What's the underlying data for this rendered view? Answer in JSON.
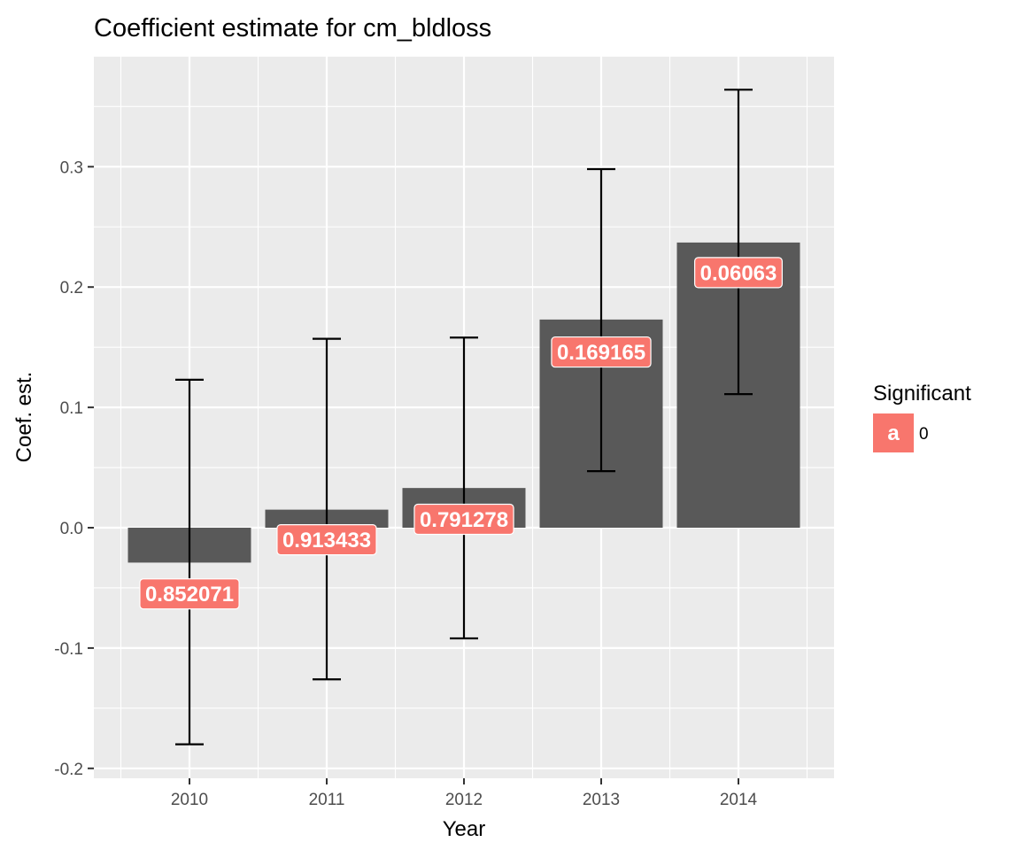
{
  "chart_data": {
    "type": "bar",
    "title": "Coefficient estimate for cm_bldloss",
    "xlabel": "Year",
    "ylabel": "Coef. est.",
    "categories": [
      "2010",
      "2011",
      "2012",
      "2013",
      "2014"
    ],
    "values": [
      -0.029,
      0.015,
      0.033,
      0.173,
      0.237
    ],
    "error_lower": [
      -0.18,
      -0.126,
      -0.092,
      0.047,
      0.111
    ],
    "error_upper": [
      0.123,
      0.157,
      0.158,
      0.298,
      0.364
    ],
    "labels": [
      "0.852071",
      "0.913433",
      "0.791278",
      "0.169165",
      "0.06063"
    ],
    "label_positions": [
      -0.055,
      -0.01,
      0.007,
      0.146,
      0.212
    ],
    "ylim": [
      -0.2,
      0.38
    ],
    "yticks": [
      -0.2,
      -0.1,
      0.0,
      0.1,
      0.2,
      0.3
    ],
    "ytick_labels": [
      "-0.2",
      "-0.1",
      "0.0",
      "0.1",
      "0.2",
      "0.3"
    ],
    "grid": true,
    "legend": {
      "title": "Significant",
      "placement": "right",
      "entries": [
        {
          "key": "a",
          "label": "0",
          "color": "#F8766D"
        }
      ]
    },
    "colors": {
      "bar": "#595959",
      "label_fill": "#F8766D",
      "panel": "#EBEBEB",
      "grid": "#FFFFFF",
      "errorbar": "#000000"
    }
  }
}
